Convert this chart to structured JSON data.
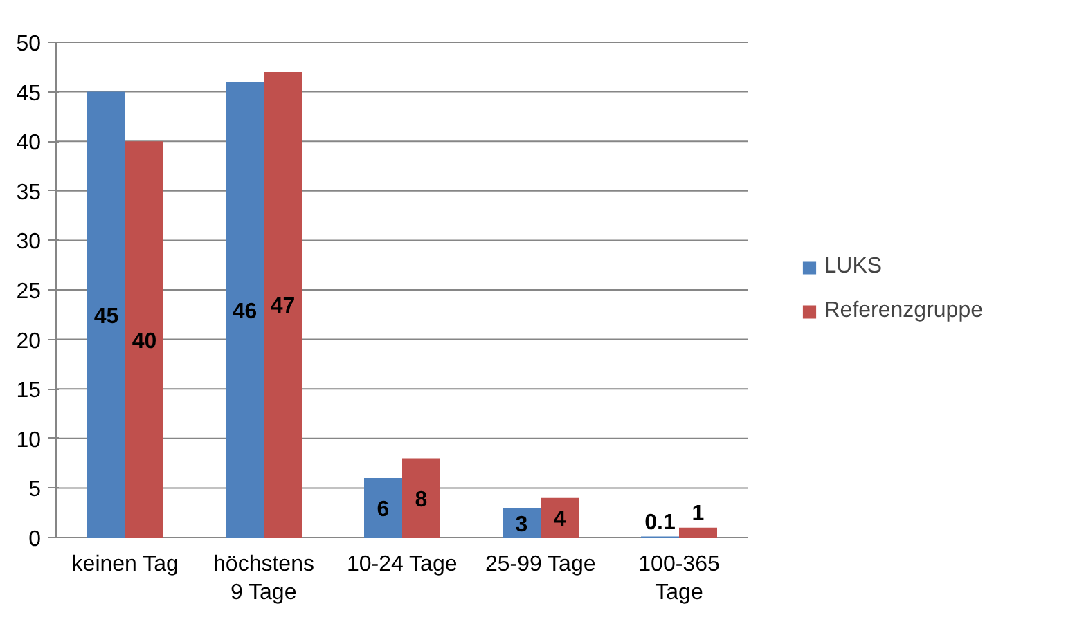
{
  "chart_data": {
    "type": "bar",
    "categories": [
      "keinen Tag",
      "höchstens 9 Tage",
      "10-24 Tage",
      "25-99 Tage",
      "100-365 Tage"
    ],
    "series": [
      {
        "name": "LUKS",
        "color": "#4f81bd",
        "values": [
          45,
          46,
          6,
          3,
          0.1
        ]
      },
      {
        "name": "Referenzgruppe",
        "color": "#c0504d",
        "values": [
          40,
          47,
          8,
          4,
          1
        ]
      }
    ],
    "ylim": [
      0,
      50
    ],
    "yticks": [
      0,
      5,
      10,
      15,
      20,
      25,
      30,
      35,
      40,
      45,
      50
    ],
    "grid": "y",
    "legend": "right",
    "data_labels": true
  }
}
